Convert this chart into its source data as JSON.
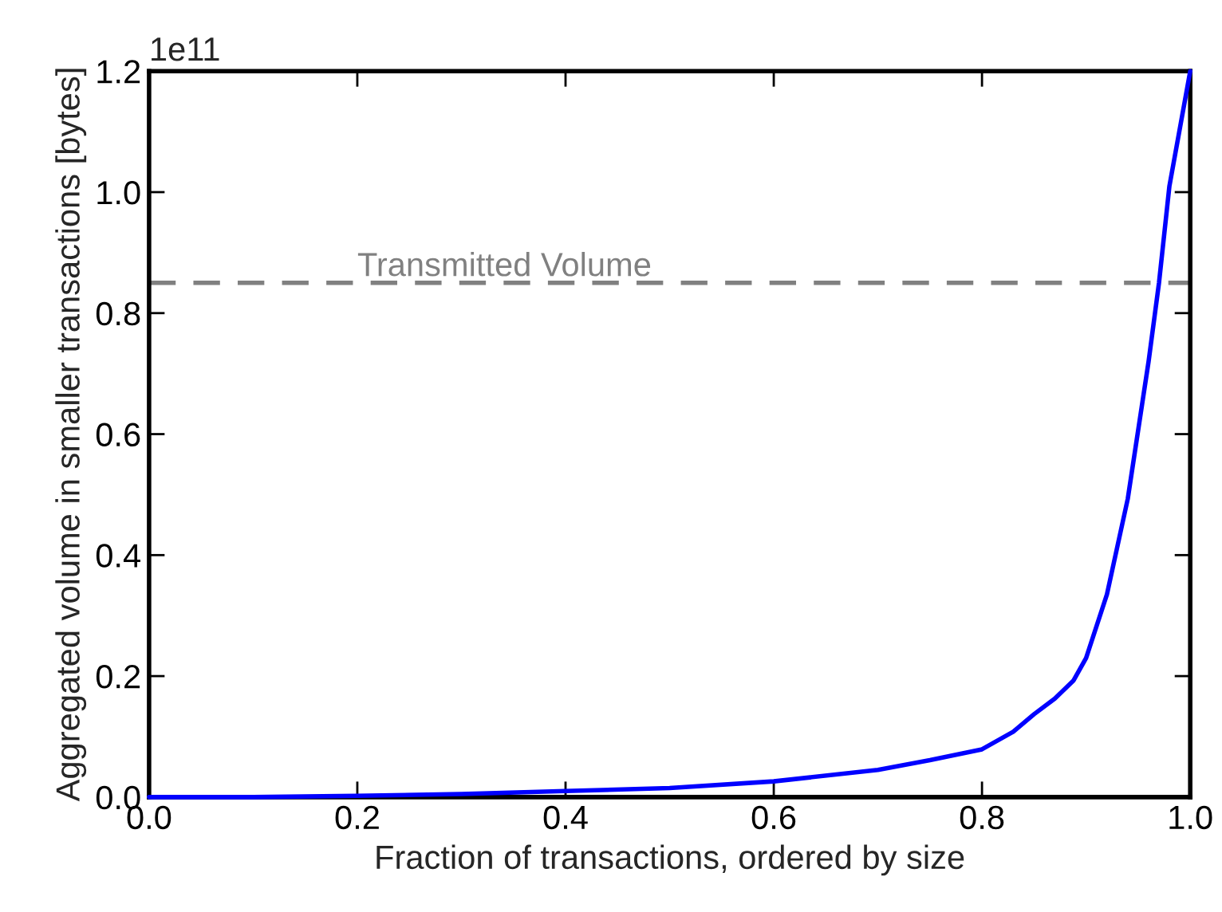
{
  "chart_data": {
    "type": "line",
    "xlabel": "Fraction of transactions, ordered by size",
    "ylabel": "Aggregated volume in smaller transactions [bytes]",
    "x": [
      0,
      0.1,
      0.2,
      0.3,
      0.4,
      0.5,
      0.6,
      0.7,
      0.75,
      0.8,
      0.83,
      0.85,
      0.87,
      0.888,
      0.9,
      0.92,
      0.94,
      0.96,
      0.97,
      0.98,
      1.0
    ],
    "series": [
      {
        "color": "#0000ff",
        "values": [
          0,
          0.0,
          0.002,
          0.005,
          0.01,
          0.015,
          0.026,
          0.045,
          0.061,
          0.079,
          0.108,
          0.137,
          0.163,
          0.193,
          0.23,
          0.335,
          0.493,
          0.72,
          0.85,
          1.01,
          1.2
        ]
      }
    ],
    "xlim": [
      0,
      1
    ],
    "ylim": [
      0,
      1.2
    ],
    "xticks": [
      {
        "value": 0,
        "label": "0.0"
      },
      0.2,
      0.4,
      0.6,
      0.8,
      {
        "value": 1,
        "label": "1.0"
      }
    ],
    "yticks": [
      {
        "value": 0,
        "label": "0.0"
      },
      0.2,
      0.4,
      0.6,
      0.8,
      {
        "value": 1,
        "label": "1.0"
      },
      1.2
    ],
    "ref_lines": [
      {
        "axis": "y",
        "value": 0.85,
        "label": "Transmitted Volume",
        "color": "#808080",
        "line_style": "dashed"
      }
    ],
    "annotations": [
      "1e11"
    ],
    "grid": false,
    "legend": false,
    "line_style": "solid",
    "marker": "none"
  }
}
